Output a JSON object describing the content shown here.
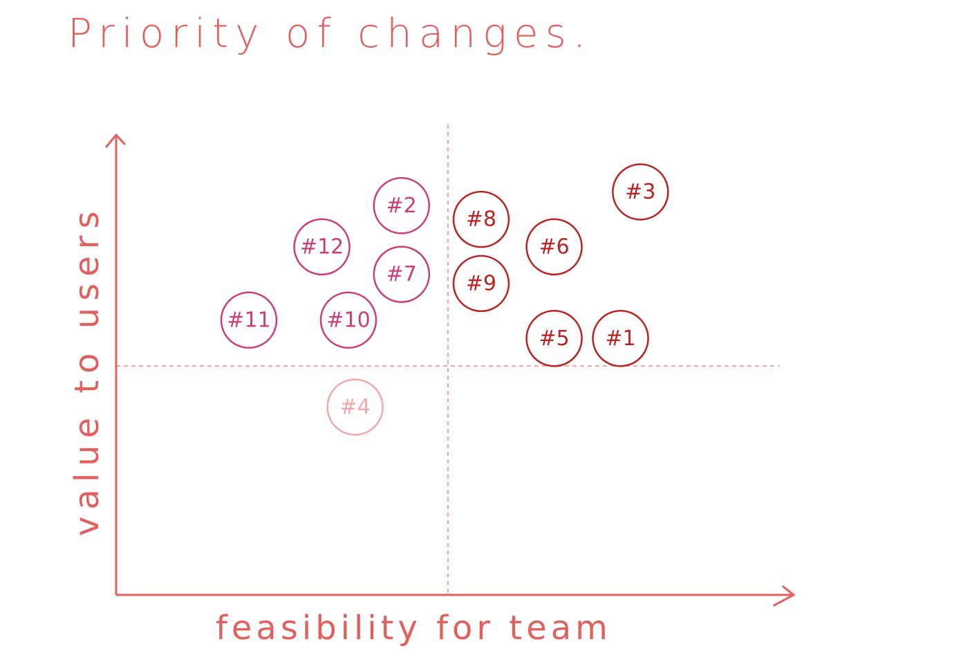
{
  "chart_data": {
    "type": "scatter",
    "title": "Priority of changes.",
    "xlabel": "feasibility for team",
    "ylabel": "value to users",
    "xlim": [
      0,
      10
    ],
    "ylim": [
      0,
      10
    ],
    "quadrant_dividers": {
      "x": 5,
      "y": 5
    },
    "grid": false,
    "colors": {
      "axis": "#e0605e",
      "divider": "#f3a5a5",
      "quadrant_high_value_high_feasibility": "#b82222",
      "quadrant_high_value_low_feasibility": "#cc3d78",
      "quadrant_low_value_low_feasibility": "#f0a8a8"
    },
    "points": [
      {
        "label": "#1",
        "x": 7.6,
        "y": 5.6,
        "group": "high_value_high_feasibility"
      },
      {
        "label": "#2",
        "x": 4.3,
        "y": 8.5,
        "group": "high_value_low_feasibility"
      },
      {
        "label": "#3",
        "x": 7.9,
        "y": 8.8,
        "group": "high_value_high_feasibility"
      },
      {
        "label": "#4",
        "x": 3.6,
        "y": 4.1,
        "group": "low_value_low_feasibility"
      },
      {
        "label": "#5",
        "x": 6.6,
        "y": 5.6,
        "group": "high_value_high_feasibility"
      },
      {
        "label": "#6",
        "x": 6.6,
        "y": 7.6,
        "group": "high_value_high_feasibility"
      },
      {
        "label": "#7",
        "x": 4.3,
        "y": 7.0,
        "group": "high_value_low_feasibility"
      },
      {
        "label": "#8",
        "x": 5.5,
        "y": 8.2,
        "group": "high_value_high_feasibility"
      },
      {
        "label": "#9",
        "x": 5.5,
        "y": 6.8,
        "group": "high_value_high_feasibility"
      },
      {
        "label": "#10",
        "x": 3.5,
        "y": 6.0,
        "group": "high_value_low_feasibility"
      },
      {
        "label": "#11",
        "x": 2.0,
        "y": 6.0,
        "group": "high_value_low_feasibility"
      },
      {
        "label": "#12",
        "x": 3.1,
        "y": 7.6,
        "group": "high_value_low_feasibility"
      }
    ]
  }
}
